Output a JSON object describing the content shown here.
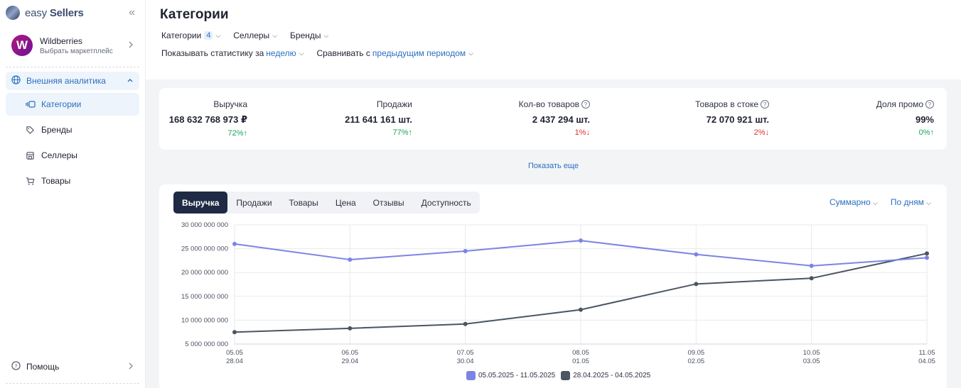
{
  "brand": {
    "name_light": "easy",
    "name_bold": "Sellers",
    "collapse_icon": "double-chevron-left-icon"
  },
  "marketplace": {
    "initial": "W",
    "name": "Wildberries",
    "subtitle": "Выбрать маркетплейс"
  },
  "sidebar": {
    "section": {
      "label": "Внешняя аналитика",
      "icon": "globe-icon"
    },
    "items": [
      {
        "label": "Категории",
        "icon": "categories-icon",
        "active": true
      },
      {
        "label": "Бренды",
        "icon": "tag-icon",
        "active": false
      },
      {
        "label": "Селлеры",
        "icon": "store-icon",
        "active": false
      },
      {
        "label": "Товары",
        "icon": "cart-icon",
        "active": false
      }
    ],
    "help": {
      "label": "Помощь",
      "icon": "help-circle-icon"
    }
  },
  "page": {
    "title": "Категории",
    "filters": {
      "categories_label": "Категории",
      "categories_count": "4",
      "sellers_label": "Селлеры",
      "brands_label": "Бренды",
      "period_prefix": "Показывать статистику за",
      "period_value": "неделю",
      "compare_prefix": "Сравнивать с",
      "compare_value": "предыдущим периодом"
    }
  },
  "stats": [
    {
      "label": "Выручка",
      "value": "168 632 768 973 ₽",
      "change": "72%",
      "direction": "up",
      "help": false
    },
    {
      "label": "Продажи",
      "value": "211 641 161 шт.",
      "change": "77%",
      "direction": "up",
      "help": false
    },
    {
      "label": "Кол-во товаров",
      "value": "2 437 294 шт.",
      "change": "1%",
      "direction": "down",
      "help": true
    },
    {
      "label": "Товаров в стоке",
      "value": "72 070 921 шт.",
      "change": "2%",
      "direction": "down",
      "help": true
    },
    {
      "label": "Доля промо",
      "value": "99%",
      "change": "0%",
      "direction": "up",
      "help": true
    }
  ],
  "show_more": "Показать еще",
  "chart_tabs": [
    "Выручка",
    "Продажи",
    "Товары",
    "Цена",
    "Отзывы",
    "Доступность"
  ],
  "chart_options": {
    "aggregation": "Суммарно",
    "granularity": "По дням"
  },
  "colors": {
    "accent": "#2a6fc0",
    "series_current": "#7b84e4",
    "series_previous": "#4b5563",
    "up": "#19a35a",
    "down": "#e0302a"
  },
  "chart_data": {
    "type": "line",
    "categories": [
      [
        "05.05",
        "28.04"
      ],
      [
        "06.05",
        "29.04"
      ],
      [
        "07.05",
        "30.04"
      ],
      [
        "08.05",
        "01.05"
      ],
      [
        "09.05",
        "02.05"
      ],
      [
        "10.05",
        "03.05"
      ],
      [
        "11.05",
        "04.05"
      ]
    ],
    "y_ticks": [
      "30 000 000 000",
      "25 000 000 000",
      "20 000 000 000",
      "15 000 000 000",
      "10 000 000 000",
      "5 000 000 000"
    ],
    "ylim": [
      5000000000,
      30000000000
    ],
    "series": [
      {
        "name": "05.05.2025 - 11.05.2025",
        "color": "#7b84e4",
        "values": [
          26000000000,
          22700000000,
          24500000000,
          26700000000,
          23800000000,
          21400000000,
          23100000000
        ]
      },
      {
        "name": "28.04.2025 - 04.05.2025",
        "color": "#4b5563",
        "values": [
          7500000000,
          8300000000,
          9200000000,
          12200000000,
          17600000000,
          18800000000,
          24000000000
        ]
      }
    ],
    "grid": true,
    "legend": "bottom-center"
  }
}
